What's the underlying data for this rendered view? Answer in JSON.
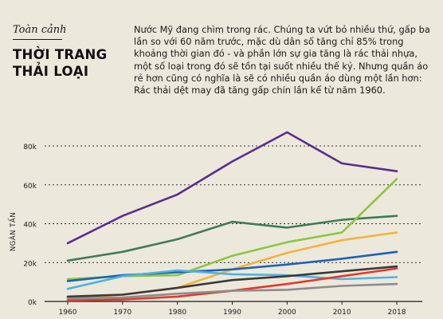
{
  "header": {
    "section": "Toàn cảnh",
    "title_line1": "THỜI TRANG",
    "title_line2": "THẢI LOẠI",
    "intro": "Nước Mỹ đang chìm trong rác. Chúng ta vứt bỏ nhiều thứ, gấp ba lần so với 60 năm trước, mặc dù dân số tăng chỉ 85% trong khoảng thời gian đó - và phần lớn sự gia tăng là rác thải nhựa, một số loại trong đó sẽ tồn tại suốt nhiều thế kỷ. Nhưng quần áo rẻ hơn cũng có nghĩa là sẽ có nhiều quần áo dùng một lần hơn: Rác thải dệt may đã tăng gấp chín lần kể từ năm 1960."
  },
  "chart_data": {
    "type": "line",
    "x": [
      "1960",
      "1970",
      "1980",
      "1990",
      "2000",
      "2010",
      "2018"
    ],
    "ylabel": "NGÀN TẤN",
    "ylim": [
      0,
      90000
    ],
    "yticks": [
      0,
      20000,
      40000,
      60000,
      80000
    ],
    "ytick_labels": [
      "0k",
      "20k",
      "40k",
      "60k",
      "80k"
    ],
    "grid": "dotted horizontal",
    "series": [
      {
        "color": "#5b2d8e",
        "values": [
          30000,
          44000,
          55000,
          72000,
          87000,
          71000,
          67000
        ]
      },
      {
        "color": "#3f7d55",
        "values": [
          21000,
          25500,
          32000,
          41000,
          38000,
          42000,
          44000
        ]
      },
      {
        "color": "#8cc63f",
        "values": [
          11500,
          13000,
          13500,
          23500,
          30500,
          35500,
          63000
        ]
      },
      {
        "color": "#f3b33d",
        "values": [
          1500,
          3500,
          7000,
          16500,
          25000,
          31500,
          35500
        ]
      },
      {
        "color": "#1f63b5",
        "values": [
          10500,
          13500,
          15000,
          16500,
          19000,
          22000,
          25500
        ]
      },
      {
        "color": "#4fb3e3",
        "values": [
          6500,
          13000,
          16000,
          14000,
          13500,
          11500,
          12500
        ]
      },
      {
        "color": "#3a3a3a",
        "values": [
          2500,
          3500,
          7000,
          11000,
          13000,
          15500,
          18000
        ]
      },
      {
        "color": "#e23a2b",
        "values": [
          500,
          1000,
          2500,
          5500,
          9000,
          13000,
          17000
        ]
      },
      {
        "color": "#8c8c8c",
        "values": [
          1500,
          2000,
          4000,
          5500,
          6000,
          8000,
          9000
        ]
      }
    ]
  }
}
